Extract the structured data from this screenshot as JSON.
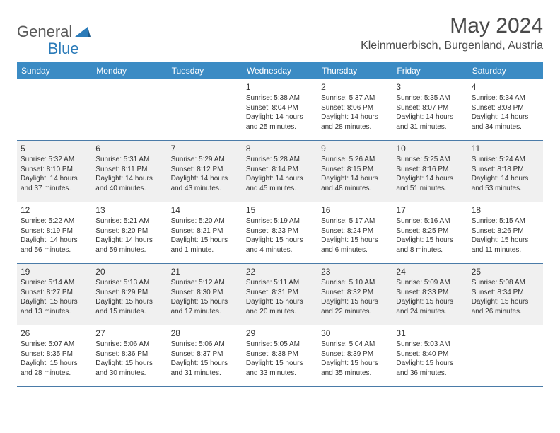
{
  "logo": {
    "general": "General",
    "blue": "Blue"
  },
  "title": "May 2024",
  "location": "Kleinmuerbisch, Burgenland, Austria",
  "colors": {
    "header_bg": "#3b8bc4",
    "header_text": "#ffffff",
    "alt_row_bg": "#f0f0f0",
    "text": "#333333",
    "divider": "#4a7ba8",
    "logo_gray": "#5a5a5a",
    "logo_blue": "#2b7bb9"
  },
  "day_names": [
    "Sunday",
    "Monday",
    "Tuesday",
    "Wednesday",
    "Thursday",
    "Friday",
    "Saturday"
  ],
  "weeks": [
    [
      null,
      null,
      null,
      {
        "n": "1",
        "sr": "5:38 AM",
        "ss": "8:04 PM",
        "dl": "14 hours and 25 minutes."
      },
      {
        "n": "2",
        "sr": "5:37 AM",
        "ss": "8:06 PM",
        "dl": "14 hours and 28 minutes."
      },
      {
        "n": "3",
        "sr": "5:35 AM",
        "ss": "8:07 PM",
        "dl": "14 hours and 31 minutes."
      },
      {
        "n": "4",
        "sr": "5:34 AM",
        "ss": "8:08 PM",
        "dl": "14 hours and 34 minutes."
      }
    ],
    [
      {
        "n": "5",
        "sr": "5:32 AM",
        "ss": "8:10 PM",
        "dl": "14 hours and 37 minutes."
      },
      {
        "n": "6",
        "sr": "5:31 AM",
        "ss": "8:11 PM",
        "dl": "14 hours and 40 minutes."
      },
      {
        "n": "7",
        "sr": "5:29 AM",
        "ss": "8:12 PM",
        "dl": "14 hours and 43 minutes."
      },
      {
        "n": "8",
        "sr": "5:28 AM",
        "ss": "8:14 PM",
        "dl": "14 hours and 45 minutes."
      },
      {
        "n": "9",
        "sr": "5:26 AM",
        "ss": "8:15 PM",
        "dl": "14 hours and 48 minutes."
      },
      {
        "n": "10",
        "sr": "5:25 AM",
        "ss": "8:16 PM",
        "dl": "14 hours and 51 minutes."
      },
      {
        "n": "11",
        "sr": "5:24 AM",
        "ss": "8:18 PM",
        "dl": "14 hours and 53 minutes."
      }
    ],
    [
      {
        "n": "12",
        "sr": "5:22 AM",
        "ss": "8:19 PM",
        "dl": "14 hours and 56 minutes."
      },
      {
        "n": "13",
        "sr": "5:21 AM",
        "ss": "8:20 PM",
        "dl": "14 hours and 59 minutes."
      },
      {
        "n": "14",
        "sr": "5:20 AM",
        "ss": "8:21 PM",
        "dl": "15 hours and 1 minute."
      },
      {
        "n": "15",
        "sr": "5:19 AM",
        "ss": "8:23 PM",
        "dl": "15 hours and 4 minutes."
      },
      {
        "n": "16",
        "sr": "5:17 AM",
        "ss": "8:24 PM",
        "dl": "15 hours and 6 minutes."
      },
      {
        "n": "17",
        "sr": "5:16 AM",
        "ss": "8:25 PM",
        "dl": "15 hours and 8 minutes."
      },
      {
        "n": "18",
        "sr": "5:15 AM",
        "ss": "8:26 PM",
        "dl": "15 hours and 11 minutes."
      }
    ],
    [
      {
        "n": "19",
        "sr": "5:14 AM",
        "ss": "8:27 PM",
        "dl": "15 hours and 13 minutes."
      },
      {
        "n": "20",
        "sr": "5:13 AM",
        "ss": "8:29 PM",
        "dl": "15 hours and 15 minutes."
      },
      {
        "n": "21",
        "sr": "5:12 AM",
        "ss": "8:30 PM",
        "dl": "15 hours and 17 minutes."
      },
      {
        "n": "22",
        "sr": "5:11 AM",
        "ss": "8:31 PM",
        "dl": "15 hours and 20 minutes."
      },
      {
        "n": "23",
        "sr": "5:10 AM",
        "ss": "8:32 PM",
        "dl": "15 hours and 22 minutes."
      },
      {
        "n": "24",
        "sr": "5:09 AM",
        "ss": "8:33 PM",
        "dl": "15 hours and 24 minutes."
      },
      {
        "n": "25",
        "sr": "5:08 AM",
        "ss": "8:34 PM",
        "dl": "15 hours and 26 minutes."
      }
    ],
    [
      {
        "n": "26",
        "sr": "5:07 AM",
        "ss": "8:35 PM",
        "dl": "15 hours and 28 minutes."
      },
      {
        "n": "27",
        "sr": "5:06 AM",
        "ss": "8:36 PM",
        "dl": "15 hours and 30 minutes."
      },
      {
        "n": "28",
        "sr": "5:06 AM",
        "ss": "8:37 PM",
        "dl": "15 hours and 31 minutes."
      },
      {
        "n": "29",
        "sr": "5:05 AM",
        "ss": "8:38 PM",
        "dl": "15 hours and 33 minutes."
      },
      {
        "n": "30",
        "sr": "5:04 AM",
        "ss": "8:39 PM",
        "dl": "15 hours and 35 minutes."
      },
      {
        "n": "31",
        "sr": "5:03 AM",
        "ss": "8:40 PM",
        "dl": "15 hours and 36 minutes."
      },
      null
    ]
  ],
  "labels": {
    "sunrise": "Sunrise:",
    "sunset": "Sunset:",
    "daylight": "Daylight:"
  }
}
